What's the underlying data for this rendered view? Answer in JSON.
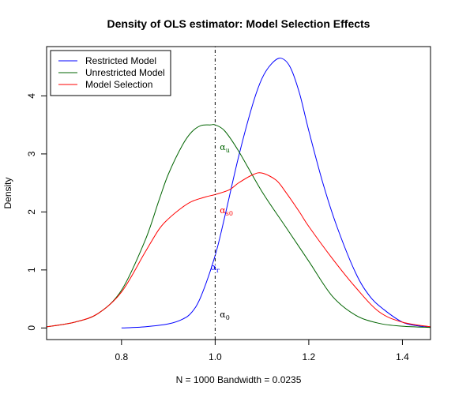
{
  "chart_data": {
    "type": "line",
    "title": "Density of OLS estimator: Model Selection Effects",
    "xlabel": "N = 1000   Bandwidth = 0.0235",
    "ylabel": "Density",
    "xlim": [
      0.64,
      1.46
    ],
    "ylim": [
      -0.2,
      4.85
    ],
    "xticks": [
      0.8,
      1.0,
      1.2,
      1.4
    ],
    "xtick_labels": [
      "0.8",
      "1.0",
      "1.2",
      "1.4"
    ],
    "yticks": [
      0,
      1,
      2,
      3,
      4
    ],
    "ytick_labels": [
      "0",
      "1",
      "2",
      "3",
      "4"
    ],
    "grid": false,
    "legend_position": "top-left",
    "reference_line": {
      "x": 1.0,
      "style": "dotdash",
      "color": "#000000"
    },
    "series": [
      {
        "name": "Restricted Model",
        "color": "#0000ff",
        "x": [
          0.8,
          0.85,
          0.9,
          0.93,
          0.95,
          0.97,
          1.0,
          1.02,
          1.05,
          1.08,
          1.1,
          1.12,
          1.14,
          1.16,
          1.18,
          1.2,
          1.23,
          1.26,
          1.3,
          1.33,
          1.36,
          1.4,
          1.43,
          1.46
        ],
        "values": [
          0.0,
          0.02,
          0.07,
          0.15,
          0.27,
          0.55,
          1.25,
          1.9,
          2.95,
          3.85,
          4.3,
          4.55,
          4.65,
          4.5,
          4.05,
          3.4,
          2.5,
          1.75,
          0.95,
          0.55,
          0.32,
          0.1,
          0.04,
          0.01
        ]
      },
      {
        "name": "Unrestricted Model",
        "color": "#006400",
        "x": [
          0.64,
          0.7,
          0.75,
          0.8,
          0.85,
          0.88,
          0.9,
          0.93,
          0.95,
          0.97,
          0.99,
          1.0,
          1.02,
          1.05,
          1.1,
          1.15,
          1.2,
          1.25,
          1.3,
          1.35,
          1.4,
          1.46
        ],
        "values": [
          0.02,
          0.1,
          0.25,
          0.65,
          1.5,
          2.2,
          2.65,
          3.15,
          3.38,
          3.49,
          3.5,
          3.5,
          3.4,
          3.05,
          2.35,
          1.75,
          1.15,
          0.55,
          0.22,
          0.08,
          0.03,
          0.01
        ]
      },
      {
        "name": "Model Selection",
        "color": "#ff0000",
        "x": [
          0.64,
          0.7,
          0.75,
          0.8,
          0.85,
          0.88,
          0.9,
          0.93,
          0.95,
          0.98,
          1.0,
          1.03,
          1.05,
          1.08,
          1.1,
          1.13,
          1.15,
          1.18,
          1.2,
          1.25,
          1.3,
          1.35,
          1.4,
          1.46
        ],
        "values": [
          0.02,
          0.1,
          0.25,
          0.62,
          1.3,
          1.7,
          1.88,
          2.08,
          2.18,
          2.26,
          2.3,
          2.38,
          2.5,
          2.64,
          2.67,
          2.55,
          2.35,
          2.0,
          1.75,
          1.2,
          0.7,
          0.28,
          0.1,
          0.02
        ]
      }
    ],
    "annotations": [
      {
        "base": "α",
        "sub": "u",
        "x": 1.01,
        "y": 3.07,
        "color": "#006400"
      },
      {
        "base": "α",
        "sub": "s0",
        "x": 1.01,
        "y": 1.98,
        "color": "#ff0000"
      },
      {
        "base": "α",
        "sub": "r",
        "x": 0.99,
        "y": 1.0,
        "color": "#0000ff"
      },
      {
        "base": "α",
        "sub": "0",
        "x": 1.01,
        "y": 0.18,
        "color": "#000000"
      }
    ]
  }
}
